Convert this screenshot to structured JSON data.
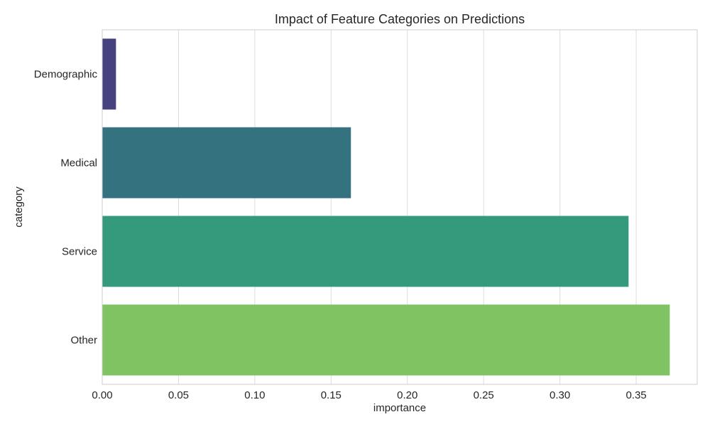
{
  "chart_data": {
    "type": "bar",
    "orientation": "horizontal",
    "title": "Impact of Feature Categories on Predictions",
    "xlabel": "importance",
    "ylabel": "category",
    "categories": [
      "Demographic",
      "Medical",
      "Service",
      "Other"
    ],
    "values": [
      0.009,
      0.163,
      0.345,
      0.372
    ],
    "colors": [
      "#46417f",
      "#357280",
      "#35997b",
      "#80c363"
    ],
    "xlim": [
      0,
      0.39
    ],
    "xticks": [
      0.0,
      0.05,
      0.1,
      0.15,
      0.2,
      0.25,
      0.3,
      0.35
    ],
    "xtick_labels": [
      "0.00",
      "0.05",
      "0.10",
      "0.15",
      "0.20",
      "0.25",
      "0.30",
      "0.35"
    ],
    "grid": true,
    "grid_axis": "x"
  }
}
